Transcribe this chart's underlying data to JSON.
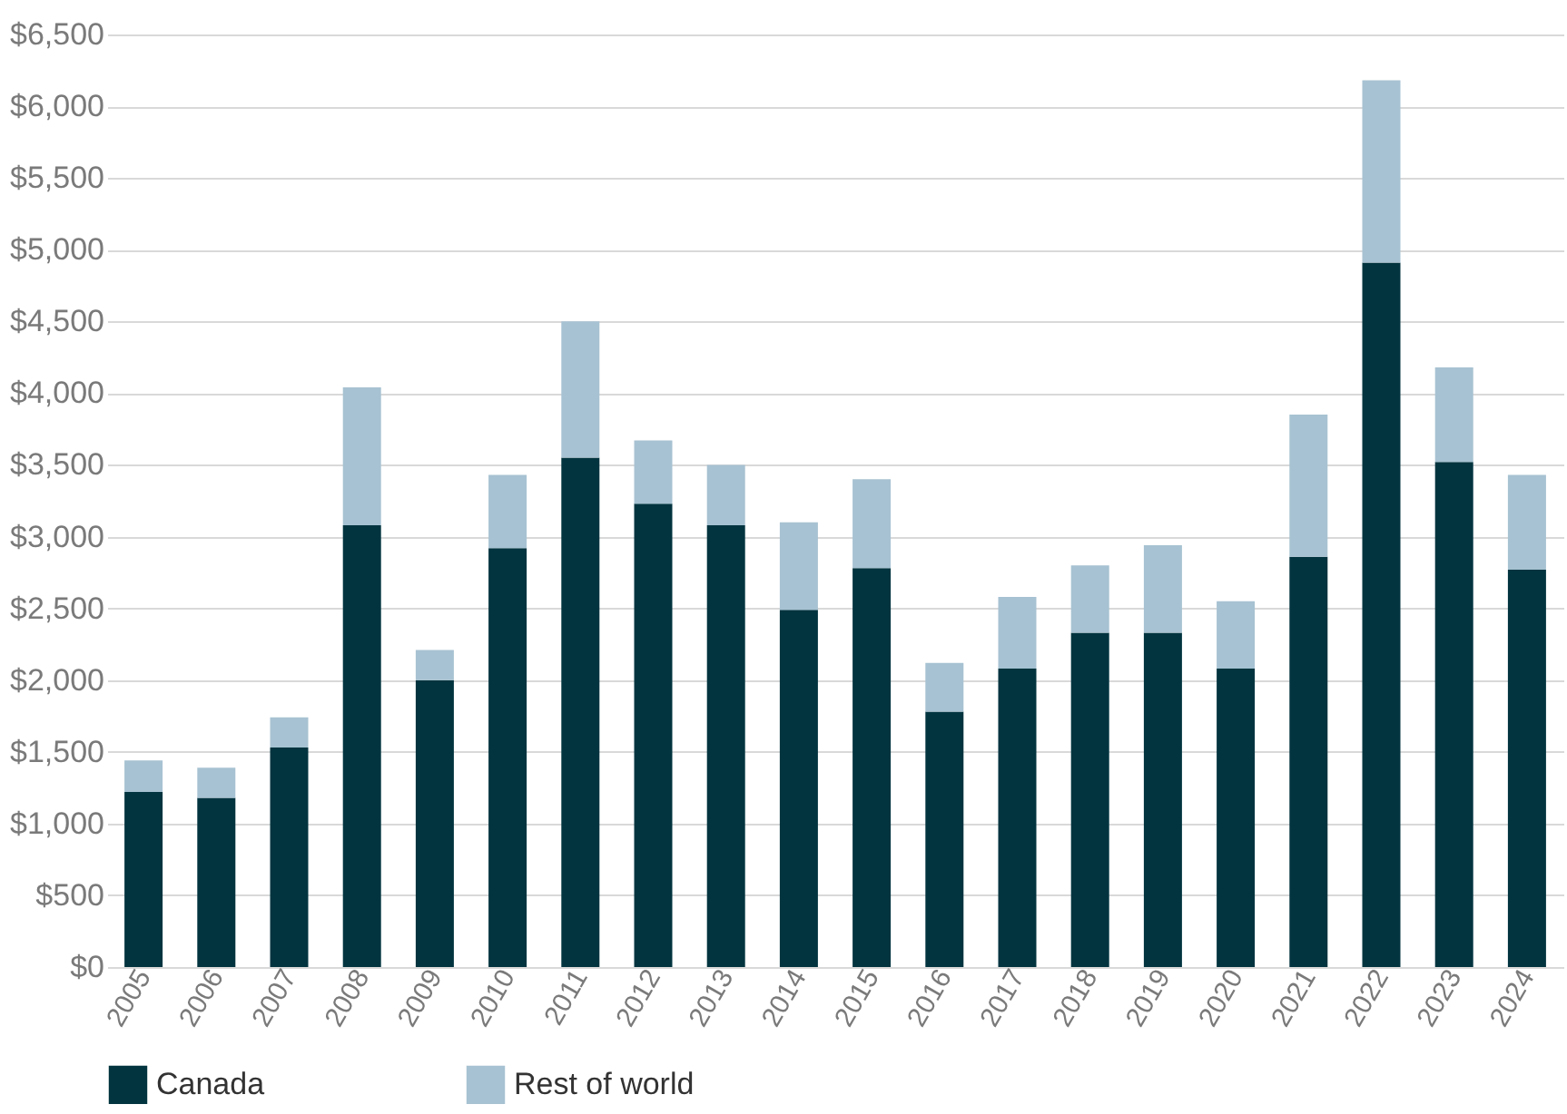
{
  "chart_data": {
    "type": "bar",
    "stacked": true,
    "categories": [
      "2005",
      "2006",
      "2007",
      "2008",
      "2009",
      "2010",
      "2011",
      "2012",
      "2013",
      "2014",
      "2015",
      "2016",
      "2017",
      "2018",
      "2019",
      "2020",
      "2021",
      "2022",
      "2023",
      "2024"
    ],
    "series": [
      {
        "name": "Canada",
        "color": "#02343f",
        "values": [
          1220,
          1180,
          1530,
          3080,
          2000,
          2920,
          3550,
          3230,
          3080,
          2490,
          2780,
          1780,
          2080,
          2330,
          2330,
          2080,
          2860,
          4910,
          3520,
          2770
        ]
      },
      {
        "name": "Rest of world",
        "color": "#a7c2d2",
        "values": [
          220,
          210,
          210,
          960,
          210,
          510,
          950,
          440,
          420,
          610,
          620,
          340,
          500,
          470,
          610,
          470,
          990,
          1270,
          660,
          660
        ]
      }
    ],
    "ylim": [
      0,
      6500
    ],
    "yticks": [
      {
        "value": 0,
        "label": "$0"
      },
      {
        "value": 500,
        "label": "$500"
      },
      {
        "value": 1000,
        "label": "$1,000"
      },
      {
        "value": 1500,
        "label": "$1,500"
      },
      {
        "value": 2000,
        "label": "$2,000"
      },
      {
        "value": 2500,
        "label": "$2,500"
      },
      {
        "value": 3000,
        "label": "$3,000"
      },
      {
        "value": 3500,
        "label": "$3,500"
      },
      {
        "value": 4000,
        "label": "$4,000"
      },
      {
        "value": 4500,
        "label": "$4,500"
      },
      {
        "value": 5000,
        "label": "$5,000"
      },
      {
        "value": 5500,
        "label": "$5,500"
      },
      {
        "value": 6000,
        "label": "$6,000"
      },
      {
        "value": 6500,
        "label": "$6,500"
      }
    ],
    "grid": "y",
    "legend": "bottom"
  }
}
